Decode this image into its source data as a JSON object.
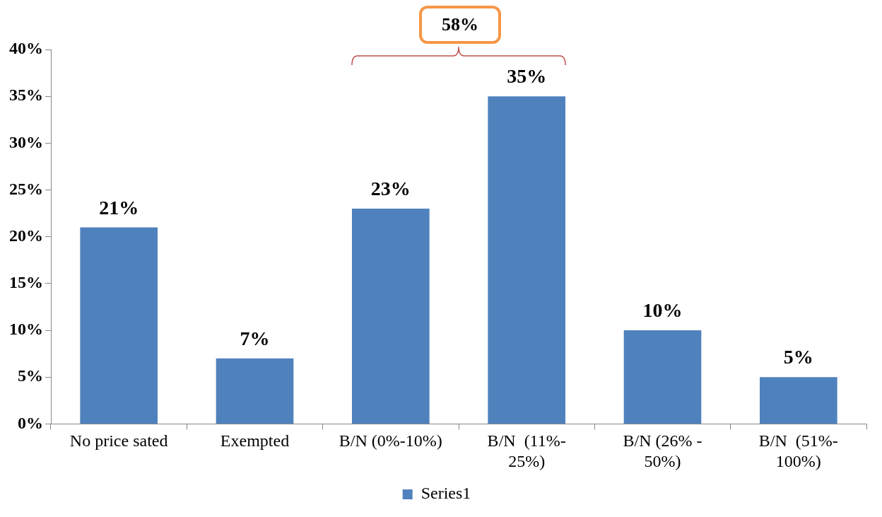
{
  "chart_data": {
    "type": "bar",
    "categories": [
      "No price sated",
      "Exempted",
      "B/N (0%-10%)",
      "B/N  (11%-25%)",
      "B/N (26% - 50%)",
      "B/N  (51%-100%)"
    ],
    "series": [
      {
        "name": "Series1",
        "color": "#4f81bd",
        "values": [
          21,
          7,
          23,
          35,
          10,
          5
        ],
        "value_labels": [
          "21%",
          "7%",
          "23%",
          "35%",
          "10%",
          "5%"
        ]
      }
    ],
    "ylim": [
      0,
      40
    ],
    "yticks": [
      {
        "value": 0,
        "label": "0%"
      },
      {
        "value": 5,
        "label": "5%"
      },
      {
        "value": 10,
        "label": "10%"
      },
      {
        "value": 15,
        "label": "15%"
      },
      {
        "value": 20,
        "label": "20%"
      },
      {
        "value": 25,
        "label": "25%"
      },
      {
        "value": 30,
        "label": "30%"
      },
      {
        "value": 35,
        "label": "35%"
      },
      {
        "value": 40,
        "label": "40%"
      }
    ],
    "grid": false,
    "legend": "bottom",
    "annotations": [
      "58%"
    ]
  }
}
